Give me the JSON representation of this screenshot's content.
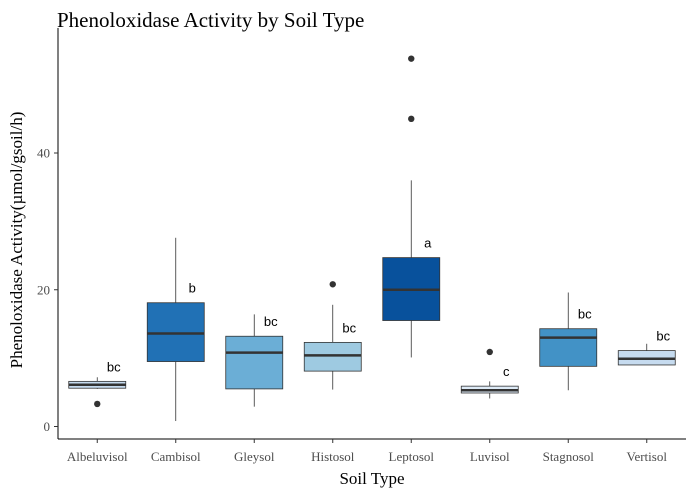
{
  "chart_data": {
    "type": "boxplot",
    "title": "Phenoloxidase Activity by Soil Type",
    "xlabel": "Soil Type",
    "ylabel": "Phenoloxidase Activity(µmol/gsoil/h)",
    "ylim": [
      -1,
      57
    ],
    "yticks": [
      0,
      20,
      40
    ],
    "grid": false,
    "legend": "none",
    "categories": [
      "Albeluvisol",
      "Cambisol",
      "Gleysol",
      "Histosol",
      "Leptosol",
      "Luvisol",
      "Stagnosol",
      "Vertisol"
    ],
    "boxes": [
      {
        "category": "Albeluvisol",
        "whisker_low": 5.5,
        "q1": 5.6,
        "median": 6.1,
        "q3": 6.6,
        "whisker_high": 7.2,
        "outliers": [
          3.3
        ],
        "group_label": "bc",
        "color": "#c6dbef"
      },
      {
        "category": "Cambisol",
        "whisker_low": 0.8,
        "q1": 9.5,
        "median": 13.6,
        "q3": 18.1,
        "whisker_high": 27.6,
        "outliers": [],
        "group_label": "b",
        "color": "#2171b5"
      },
      {
        "category": "Gleysol",
        "whisker_low": 2.9,
        "q1": 5.5,
        "median": 10.8,
        "q3": 13.2,
        "whisker_high": 16.4,
        "outliers": [],
        "group_label": "bc",
        "color": "#6baed6"
      },
      {
        "category": "Histosol",
        "whisker_low": 5.4,
        "q1": 8.1,
        "median": 10.4,
        "q3": 12.3,
        "whisker_high": 17.8,
        "outliers": [
          20.8
        ],
        "group_label": "bc",
        "color": "#9ecae1"
      },
      {
        "category": "Leptosol",
        "whisker_low": 10.1,
        "q1": 15.5,
        "median": 20.0,
        "q3": 24.7,
        "whisker_high": 36.0,
        "outliers": [
          45.0,
          53.8
        ],
        "group_label": "a",
        "color": "#08519c"
      },
      {
        "category": "Luvisol",
        "whisker_low": 4.1,
        "q1": 4.9,
        "median": 5.3,
        "q3": 5.9,
        "whisker_high": 6.6,
        "outliers": [
          10.9
        ],
        "group_label": "c",
        "color": "#deebf7"
      },
      {
        "category": "Stagnosol",
        "whisker_low": 5.3,
        "q1": 8.8,
        "median": 13.0,
        "q3": 14.3,
        "whisker_high": 19.6,
        "outliers": [],
        "group_label": "bc",
        "color": "#4292c6"
      },
      {
        "category": "Vertisol",
        "whisker_low": 9.0,
        "q1": 9.0,
        "median": 9.9,
        "q3": 11.1,
        "whisker_high": 12.1,
        "outliers": [],
        "group_label": "bc",
        "color": "#c6dbef"
      }
    ]
  }
}
